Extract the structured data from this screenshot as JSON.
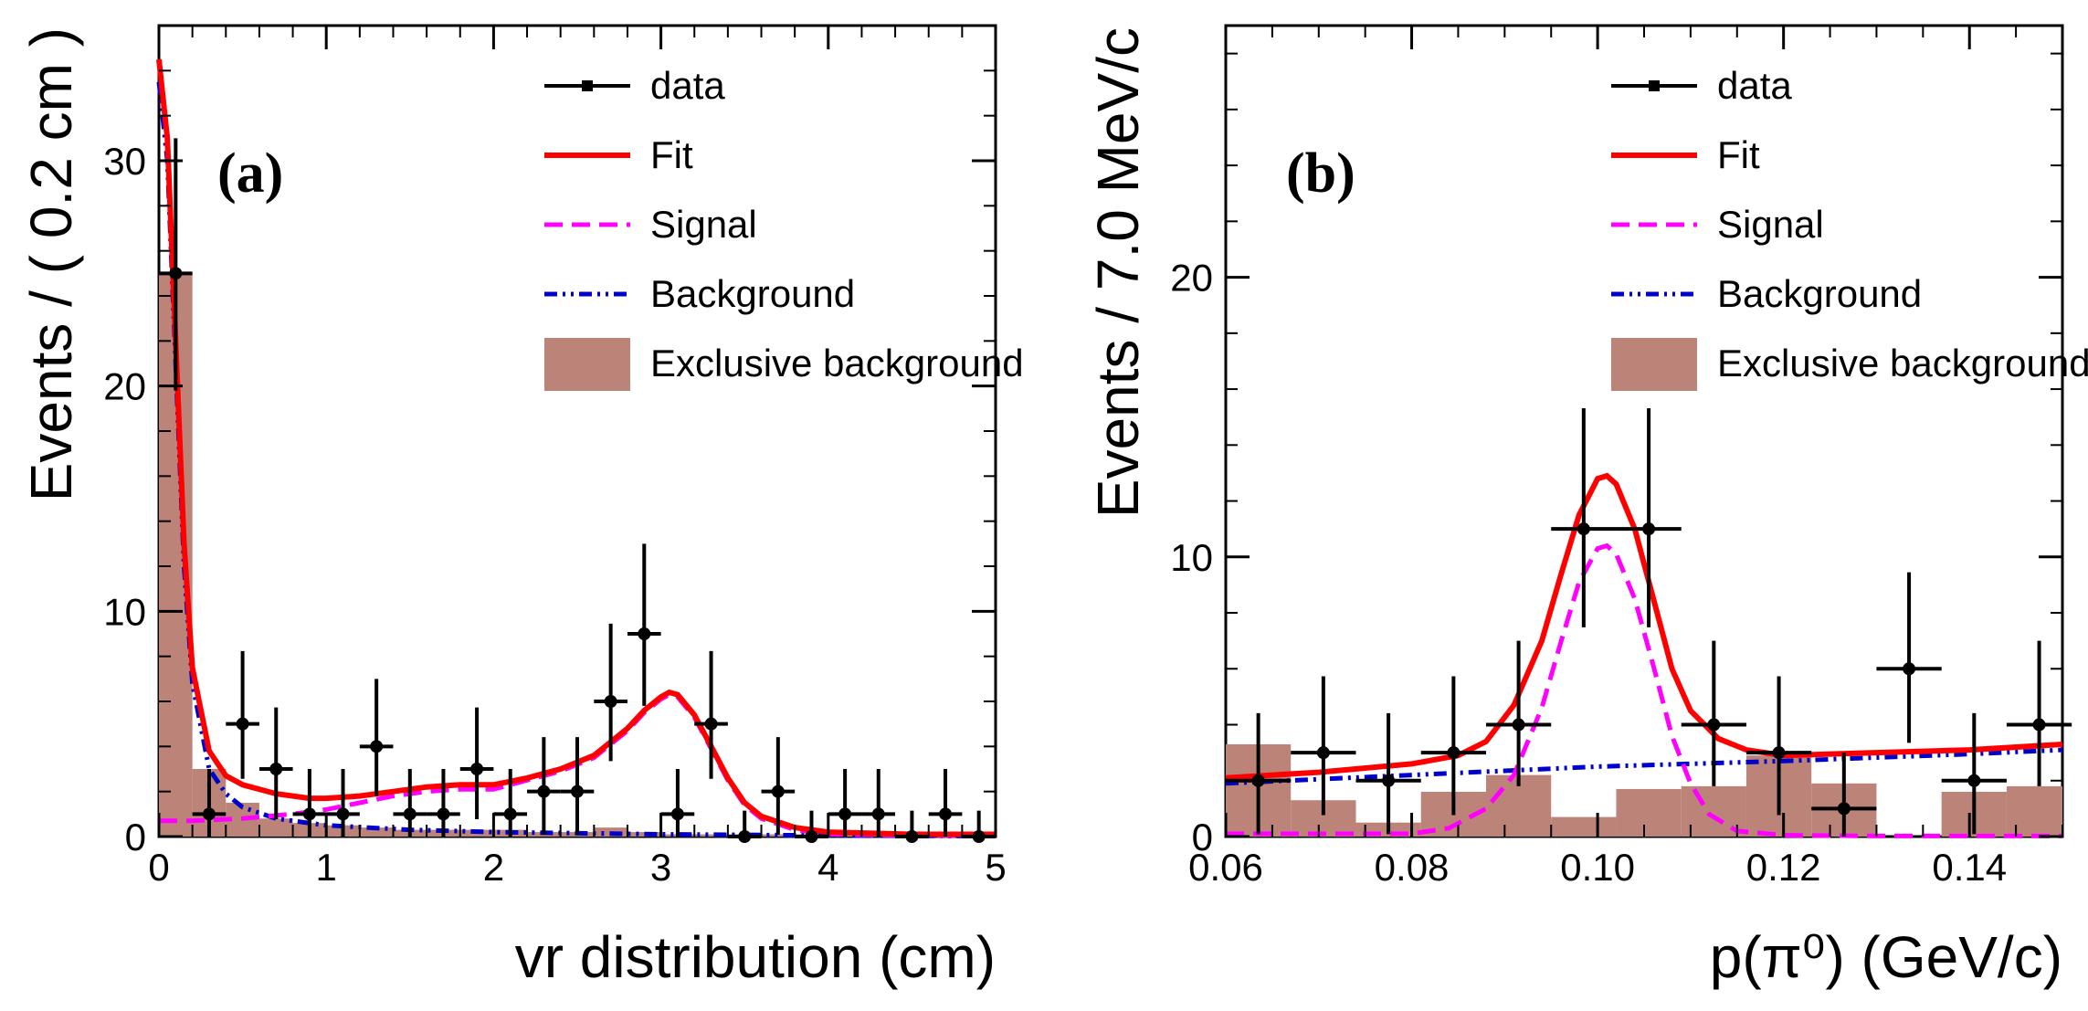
{
  "chart_data": [
    {
      "type": "histogram-fit",
      "panel_label": "(a)",
      "xlabel": "vr distribution (cm)",
      "ylabel": "Events / ( 0.2 cm )",
      "xlim": [
        0,
        5
      ],
      "ylim": [
        0,
        36
      ],
      "x_ticks": [
        0,
        1,
        2,
        3,
        4,
        5
      ],
      "y_ticks": [
        0,
        10,
        20,
        30
      ],
      "legend": [
        "data",
        "Fit",
        "Signal",
        "Background",
        "Exclusive background"
      ],
      "colors": {
        "data": "#000000",
        "fit": "#ff0000",
        "signal": "#ff00ff",
        "background": "#0000cc",
        "exclusive": "#bc8378"
      },
      "bin_width": 0.2,
      "data": {
        "x": [
          0.1,
          0.3,
          0.5,
          0.7,
          0.9,
          1.1,
          1.3,
          1.5,
          1.7,
          1.9,
          2.1,
          2.3,
          2.5,
          2.7,
          2.9,
          3.1,
          3.3,
          3.5,
          3.7,
          3.9,
          4.1,
          4.3,
          4.5,
          4.7,
          4.9
        ],
        "y": [
          25,
          1,
          5,
          3,
          1,
          1,
          4,
          1,
          1,
          3,
          1,
          2,
          2,
          6,
          9,
          1,
          5,
          0,
          2,
          0,
          1,
          1,
          0,
          1,
          0
        ]
      },
      "exclusive_background": {
        "edges": [
          0,
          0.2,
          0.4,
          0.6,
          0.8,
          1.0,
          1.2,
          1.4,
          1.6,
          1.8,
          2.0,
          2.2,
          2.4,
          2.6,
          2.8,
          3.0,
          3.2,
          3.4,
          3.6,
          3.8,
          4.0,
          4.2,
          4.4,
          4.6,
          4.8,
          5.0
        ],
        "values": [
          25,
          3,
          1.5,
          0.8,
          0.6,
          0.5,
          0.4,
          0.3,
          0.3,
          0.3,
          0.3,
          0.2,
          0.2,
          0.4,
          0.2,
          0.1,
          0.1,
          0.1,
          0.1,
          0.1,
          0.1,
          0.1,
          0.1,
          0.1,
          0.1
        ]
      },
      "fit": {
        "x": [
          0,
          0.05,
          0.1,
          0.15,
          0.2,
          0.3,
          0.4,
          0.5,
          0.7,
          0.9,
          1.0,
          1.2,
          1.4,
          1.6,
          1.8,
          2.0,
          2.2,
          2.4,
          2.6,
          2.8,
          2.9,
          3.0,
          3.05,
          3.1,
          3.2,
          3.3,
          3.4,
          3.5,
          3.6,
          3.8,
          4.0,
          4.5,
          5.0
        ],
        "y": [
          34.5,
          31,
          22,
          13,
          7.5,
          3.8,
          2.7,
          2.3,
          1.9,
          1.7,
          1.7,
          1.8,
          2.0,
          2.2,
          2.3,
          2.3,
          2.6,
          3.0,
          3.6,
          4.8,
          5.6,
          6.2,
          6.4,
          6.3,
          5.4,
          4.0,
          2.6,
          1.5,
          0.9,
          0.4,
          0.2,
          0.1,
          0.1
        ]
      },
      "signal": {
        "x": [
          0,
          0.2,
          0.5,
          0.8,
          1.0,
          1.2,
          1.4,
          1.6,
          1.8,
          2.0,
          2.2,
          2.4,
          2.6,
          2.8,
          2.9,
          3.0,
          3.05,
          3.1,
          3.2,
          3.3,
          3.4,
          3.5,
          3.6,
          3.8,
          4.0,
          4.5,
          5.0
        ],
        "y": [
          0.7,
          0.7,
          0.8,
          1.0,
          1.2,
          1.5,
          1.8,
          2.0,
          2.1,
          2.1,
          2.5,
          2.9,
          3.5,
          4.7,
          5.5,
          6.1,
          6.3,
          6.2,
          5.3,
          3.9,
          2.5,
          1.4,
          0.8,
          0.3,
          0.1,
          0.05,
          0.05
        ]
      },
      "background": {
        "x": [
          0,
          0.05,
          0.1,
          0.15,
          0.2,
          0.3,
          0.4,
          0.5,
          0.7,
          1.0,
          1.5,
          2.0,
          3.0,
          4.0,
          5.0
        ],
        "y": [
          33.5,
          30,
          21,
          12,
          6.8,
          3.0,
          1.9,
          1.3,
          0.8,
          0.5,
          0.3,
          0.2,
          0.1,
          0.05,
          0.02
        ]
      }
    },
    {
      "type": "histogram-fit",
      "panel_label": "(b)",
      "xlabel": "p(π⁰) (GeV/c)",
      "ylabel": "Events / 7.0 MeV/c",
      "xlim": [
        0.06,
        0.15
      ],
      "ylim": [
        0,
        29
      ],
      "x_ticks": [
        0.06,
        0.08,
        0.1,
        0.12,
        0.14
      ],
      "x_tick_labels": [
        "0.06",
        "0.08",
        "0.10",
        "0.12",
        "0.14"
      ],
      "y_ticks": [
        0,
        10,
        20
      ],
      "legend": [
        "data",
        "Fit",
        "Signal",
        "Background",
        "Exclusive background"
      ],
      "colors": {
        "data": "#000000",
        "fit": "#ff0000",
        "signal": "#ff00ff",
        "background": "#0000cc",
        "exclusive": "#bc8378"
      },
      "bin_width": 0.007,
      "data": {
        "x": [
          0.0635,
          0.0705,
          0.0775,
          0.0845,
          0.0915,
          0.0985,
          0.1055,
          0.1125,
          0.1195,
          0.1265,
          0.1335,
          0.1405,
          0.1475
        ],
        "y": [
          2,
          3,
          2,
          3,
          4,
          11,
          11,
          4,
          3,
          1,
          6,
          2,
          4
        ]
      },
      "exclusive_background": {
        "edges": [
          0.06,
          0.067,
          0.074,
          0.081,
          0.088,
          0.095,
          0.102,
          0.109,
          0.116,
          0.123,
          0.13,
          0.137,
          0.144,
          0.15
        ],
        "values": [
          3.3,
          1.3,
          0.5,
          1.6,
          2.2,
          0.7,
          1.7,
          1.8,
          2.9,
          1.9,
          0,
          1.6,
          1.8
        ]
      },
      "fit": {
        "x": [
          0.06,
          0.07,
          0.08,
          0.085,
          0.088,
          0.091,
          0.094,
          0.096,
          0.098,
          0.1,
          0.101,
          0.102,
          0.104,
          0.106,
          0.108,
          0.11,
          0.113,
          0.116,
          0.12,
          0.13,
          0.14,
          0.15
        ],
        "y": [
          2.1,
          2.3,
          2.6,
          2.9,
          3.4,
          4.7,
          7.0,
          9.3,
          11.5,
          12.8,
          12.9,
          12.6,
          11.0,
          8.5,
          6.0,
          4.5,
          3.5,
          3.1,
          2.9,
          3.0,
          3.1,
          3.3
        ]
      },
      "signal": {
        "x": [
          0.06,
          0.08,
          0.084,
          0.088,
          0.091,
          0.094,
          0.096,
          0.098,
          0.1,
          0.101,
          0.102,
          0.104,
          0.106,
          0.108,
          0.11,
          0.112,
          0.115,
          0.12,
          0.13,
          0.15
        ],
        "y": [
          0.1,
          0.1,
          0.3,
          1.0,
          2.2,
          4.6,
          6.9,
          9.1,
          10.3,
          10.4,
          10.1,
          8.5,
          6.1,
          3.6,
          1.9,
          0.8,
          0.2,
          0.05,
          0.02,
          0.02
        ]
      },
      "background": {
        "x": [
          0.06,
          0.08,
          0.1,
          0.12,
          0.14,
          0.15
        ],
        "y": [
          1.9,
          2.2,
          2.5,
          2.7,
          2.95,
          3.1
        ]
      }
    }
  ]
}
